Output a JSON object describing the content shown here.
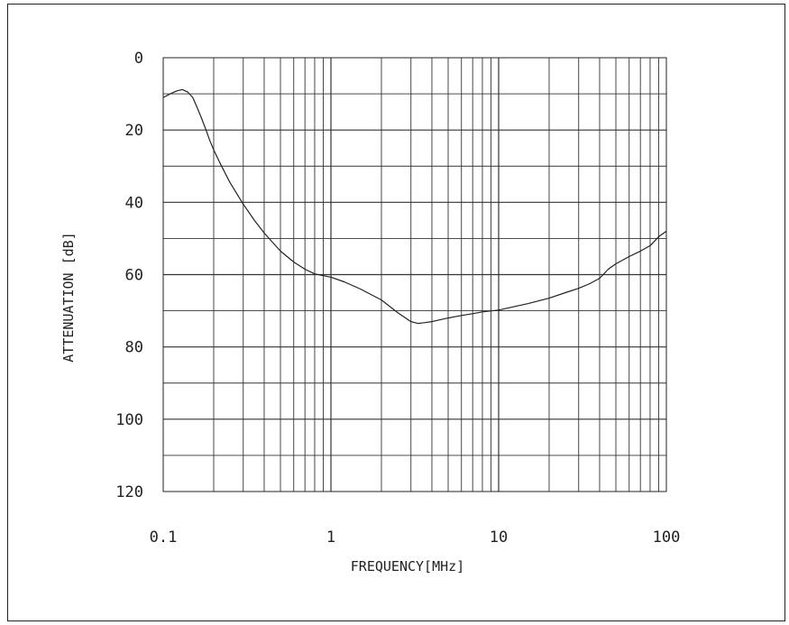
{
  "chart_data": {
    "type": "line",
    "xlabel": "FREQUENCY[MHz]",
    "ylabel": "ATTENUATION [dB]",
    "x_scale": "log",
    "xlim": [
      0.1,
      100
    ],
    "ylim": [
      0,
      120
    ],
    "y_inverted": true,
    "grid": true,
    "x_ticks": [
      {
        "value": 0.1,
        "label": "0.1"
      },
      {
        "value": 1,
        "label": "1"
      },
      {
        "value": 10,
        "label": "10"
      },
      {
        "value": 100,
        "label": "100"
      }
    ],
    "y_ticks": [
      {
        "value": 0,
        "label": "0"
      },
      {
        "value": 20,
        "label": "20"
      },
      {
        "value": 40,
        "label": "40"
      },
      {
        "value": 60,
        "label": "60"
      },
      {
        "value": 80,
        "label": "80"
      },
      {
        "value": 100,
        "label": "100"
      },
      {
        "value": 120,
        "label": "120"
      }
    ],
    "series": [
      {
        "color": "#222222",
        "x": [
          0.1,
          0.11,
          0.12,
          0.13,
          0.14,
          0.15,
          0.16,
          0.17,
          0.18,
          0.19,
          0.2,
          0.22,
          0.25,
          0.3,
          0.35,
          0.4,
          0.5,
          0.6,
          0.7,
          0.8,
          0.9,
          1.0,
          1.2,
          1.5,
          2.0,
          2.5,
          3.0,
          3.3,
          3.6,
          4.0,
          5.0,
          6.0,
          7.0,
          8.0,
          10,
          12,
          15,
          20,
          25,
          30,
          35,
          40,
          42,
          45,
          50,
          60,
          70,
          80,
          90,
          100
        ],
        "y": [
          11,
          10,
          9.2,
          8.8,
          9.5,
          11,
          14,
          17,
          20,
          23,
          25.5,
          29.5,
          34.5,
          40.5,
          45,
          48.5,
          53.5,
          56.5,
          58.5,
          59.8,
          60.3,
          60.7,
          62,
          64,
          67,
          70.5,
          73,
          73.5,
          73.3,
          73,
          72,
          71.3,
          70.8,
          70.3,
          69.8,
          69,
          68,
          66.5,
          65,
          63.8,
          62.5,
          61,
          60,
          58.5,
          57,
          55,
          53.5,
          52,
          49.5,
          48
        ]
      }
    ]
  }
}
